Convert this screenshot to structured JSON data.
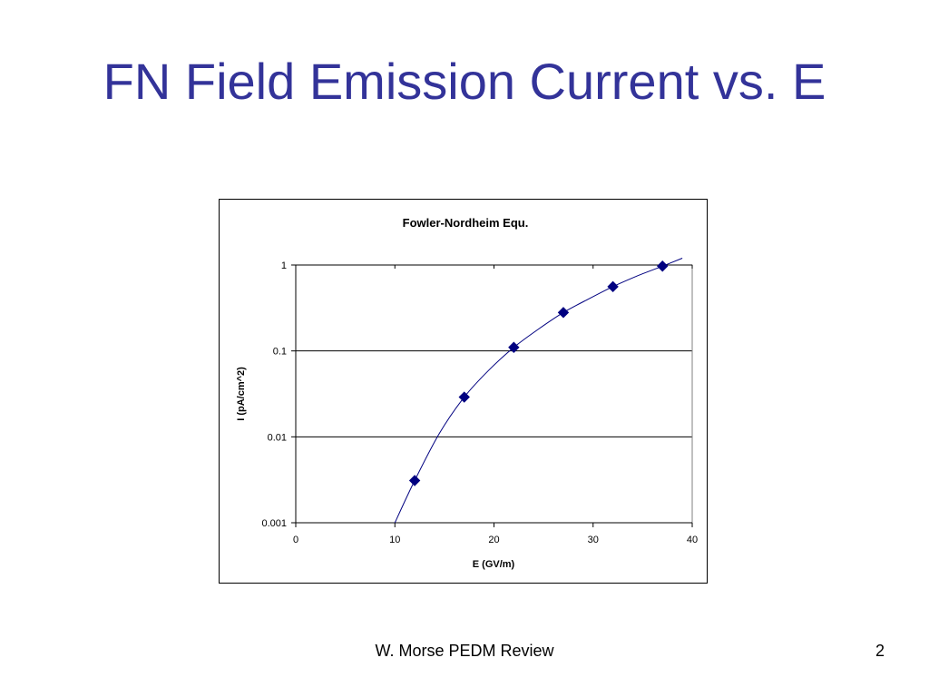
{
  "slide": {
    "title": "FN Field Emission Current vs. E",
    "footer": "W. Morse PEDM Review",
    "page_number": "2",
    "title_color": "#333399"
  },
  "chart_data": {
    "type": "scatter",
    "title": "Fowler-Nordheim Equ.",
    "xlabel": "E (GV/m)",
    "ylabel": "I (pA/cm^2)",
    "xlim": [
      0,
      40
    ],
    "ylim": [
      0.001,
      1
    ],
    "yscale": "log",
    "x_ticks": [
      "0",
      "10",
      "20",
      "30",
      "40"
    ],
    "y_ticks": [
      "0.001",
      "0.01",
      "0.1",
      "1"
    ],
    "grid": "horizontal",
    "legend": "none",
    "series": [
      {
        "color": "#000080",
        "marker": "diamond",
        "x": [
          12,
          17,
          22,
          27,
          32,
          37
        ],
        "y": [
          0.0031,
          0.029,
          0.11,
          0.28,
          0.56,
          0.97
        ]
      }
    ],
    "curve": {
      "color": "#000080",
      "x": [
        10,
        12,
        14.5,
        17,
        19.5,
        22,
        24.5,
        27,
        29.5,
        32,
        34.5,
        37,
        39
      ],
      "y": [
        0.001,
        0.0031,
        0.011,
        0.029,
        0.06,
        0.11,
        0.18,
        0.28,
        0.4,
        0.56,
        0.75,
        0.97,
        1.2
      ]
    }
  }
}
